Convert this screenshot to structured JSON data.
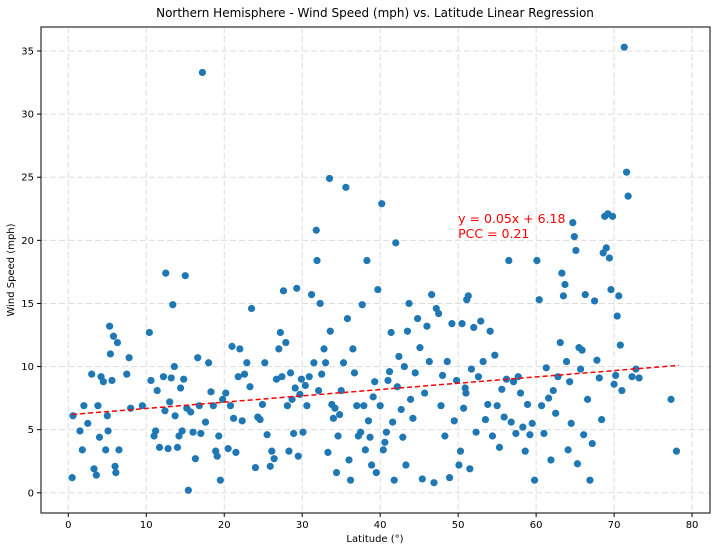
{
  "chart_data": {
    "type": "scatter",
    "title": "Northern Hemisphere - Wind Speed (mph) vs. Latitude Linear Regression",
    "xlabel": "Latitude (°)",
    "ylabel": "Wind Speed (mph)",
    "xlim": [
      -3.5,
      82.3
    ],
    "ylim": [
      -1.6,
      36.9
    ],
    "xticks": [
      0,
      10,
      20,
      30,
      40,
      50,
      60,
      70,
      80
    ],
    "yticks": [
      0,
      5,
      10,
      15,
      20,
      25,
      30,
      35
    ],
    "grid": true,
    "point_color": "#1f77b4",
    "regression": {
      "slope": 0.05,
      "intercept": 6.18,
      "x_range": [
        0.5,
        78.3
      ],
      "color": "#ff0000",
      "style": "dashed"
    },
    "annotations": {
      "equation": "y = 0.05x + 6.18",
      "pcc": "PCC = 0.21",
      "color": "#ff0000",
      "x": 50,
      "y": 20.5
    },
    "points": [
      [
        0.5,
        1.2
      ],
      [
        0.6,
        6.1
      ],
      [
        1.5,
        4.9
      ],
      [
        1.8,
        3.4
      ],
      [
        2.0,
        6.9
      ],
      [
        2.5,
        5.5
      ],
      [
        3.0,
        9.4
      ],
      [
        3.3,
        1.9
      ],
      [
        3.6,
        1.4
      ],
      [
        3.8,
        6.9
      ],
      [
        4.0,
        4.4
      ],
      [
        4.2,
        9.2
      ],
      [
        4.5,
        8.8
      ],
      [
        4.8,
        3.4
      ],
      [
        5.0,
        6.1
      ],
      [
        5.1,
        4.9
      ],
      [
        5.3,
        13.2
      ],
      [
        5.4,
        11.0
      ],
      [
        5.6,
        8.9
      ],
      [
        5.8,
        12.4
      ],
      [
        6.0,
        2.1
      ],
      [
        6.1,
        1.6
      ],
      [
        6.3,
        11.9
      ],
      [
        6.5,
        3.4
      ],
      [
        7.5,
        9.4
      ],
      [
        7.8,
        10.7
      ],
      [
        8.0,
        6.7
      ],
      [
        9.5,
        6.9
      ],
      [
        10.4,
        12.7
      ],
      [
        10.6,
        8.9
      ],
      [
        11.0,
        4.5
      ],
      [
        11.2,
        4.9
      ],
      [
        11.4,
        8.1
      ],
      [
        11.7,
        3.6
      ],
      [
        12.2,
        9.2
      ],
      [
        12.4,
        6.5
      ],
      [
        12.5,
        17.4
      ],
      [
        12.8,
        3.5
      ],
      [
        13.0,
        7.2
      ],
      [
        13.2,
        9.1
      ],
      [
        13.4,
        14.9
      ],
      [
        13.6,
        10.0
      ],
      [
        13.7,
        6.1
      ],
      [
        14.0,
        3.6
      ],
      [
        14.2,
        4.5
      ],
      [
        14.4,
        8.3
      ],
      [
        14.6,
        4.9
      ],
      [
        14.8,
        9.0
      ],
      [
        15.0,
        17.2
      ],
      [
        15.2,
        6.7
      ],
      [
        15.4,
        0.2
      ],
      [
        15.7,
        6.4
      ],
      [
        16.0,
        4.8
      ],
      [
        16.3,
        2.7
      ],
      [
        16.6,
        10.7
      ],
      [
        16.8,
        6.9
      ],
      [
        17.0,
        4.7
      ],
      [
        17.2,
        33.3
      ],
      [
        17.6,
        5.6
      ],
      [
        18.0,
        10.3
      ],
      [
        18.3,
        8.0
      ],
      [
        18.6,
        6.9
      ],
      [
        18.9,
        3.3
      ],
      [
        19.1,
        2.9
      ],
      [
        19.3,
        4.5
      ],
      [
        19.5,
        1.0
      ],
      [
        19.8,
        7.4
      ],
      [
        20.2,
        7.9
      ],
      [
        20.5,
        3.5
      ],
      [
        20.8,
        6.9
      ],
      [
        21.0,
        11.6
      ],
      [
        21.2,
        5.9
      ],
      [
        21.5,
        3.2
      ],
      [
        21.8,
        9.2
      ],
      [
        22.0,
        11.4
      ],
      [
        22.3,
        5.7
      ],
      [
        22.6,
        9.4
      ],
      [
        22.9,
        10.3
      ],
      [
        23.3,
        8.4
      ],
      [
        23.5,
        14.6
      ],
      [
        24.0,
        2.0
      ],
      [
        24.3,
        6.0
      ],
      [
        24.6,
        5.8
      ],
      [
        24.9,
        7.0
      ],
      [
        25.2,
        10.3
      ],
      [
        25.5,
        4.6
      ],
      [
        25.9,
        2.1
      ],
      [
        26.1,
        3.3
      ],
      [
        26.4,
        2.7
      ],
      [
        26.7,
        9.0
      ],
      [
        27.0,
        11.4
      ],
      [
        27.2,
        12.7
      ],
      [
        27.4,
        9.2
      ],
      [
        27.6,
        16.0
      ],
      [
        27.9,
        11.9
      ],
      [
        28.1,
        6.9
      ],
      [
        28.3,
        3.3
      ],
      [
        28.5,
        9.5
      ],
      [
        28.7,
        7.4
      ],
      [
        28.9,
        4.7
      ],
      [
        29.1,
        8.3
      ],
      [
        29.3,
        16.2
      ],
      [
        29.5,
        2.9
      ],
      [
        29.7,
        7.8
      ],
      [
        29.9,
        9.0
      ],
      [
        30.1,
        4.8
      ],
      [
        30.4,
        8.5
      ],
      [
        30.6,
        6.9
      ],
      [
        30.9,
        9.2
      ],
      [
        31.2,
        15.7
      ],
      [
        31.5,
        10.3
      ],
      [
        31.8,
        20.8
      ],
      [
        31.9,
        18.4
      ],
      [
        32.1,
        8.1
      ],
      [
        32.3,
        15.0
      ],
      [
        32.5,
        9.4
      ],
      [
        32.8,
        11.4
      ],
      [
        33.0,
        10.3
      ],
      [
        33.3,
        3.2
      ],
      [
        33.5,
        24.9
      ],
      [
        33.6,
        12.8
      ],
      [
        33.8,
        7.0
      ],
      [
        34.0,
        5.9
      ],
      [
        34.2,
        6.7
      ],
      [
        34.4,
        1.6
      ],
      [
        34.6,
        4.5
      ],
      [
        34.8,
        6.2
      ],
      [
        35.0,
        8.1
      ],
      [
        35.3,
        10.3
      ],
      [
        35.6,
        24.2
      ],
      [
        35.8,
        13.8
      ],
      [
        36.0,
        2.6
      ],
      [
        36.2,
        1.0
      ],
      [
        36.5,
        11.4
      ],
      [
        36.7,
        9.5
      ],
      [
        37.0,
        6.9
      ],
      [
        37.2,
        4.5
      ],
      [
        37.5,
        4.8
      ],
      [
        37.7,
        14.9
      ],
      [
        37.9,
        6.9
      ],
      [
        38.1,
        3.4
      ],
      [
        38.3,
        18.4
      ],
      [
        38.5,
        5.7
      ],
      [
        38.7,
        4.4
      ],
      [
        38.9,
        2.2
      ],
      [
        39.1,
        7.6
      ],
      [
        39.3,
        8.8
      ],
      [
        39.5,
        1.6
      ],
      [
        39.7,
        16.1
      ],
      [
        40.0,
        6.9
      ],
      [
        40.2,
        22.9
      ],
      [
        40.4,
        3.4
      ],
      [
        40.6,
        4.0
      ],
      [
        40.8,
        4.8
      ],
      [
        41.0,
        8.9
      ],
      [
        41.2,
        9.6
      ],
      [
        41.4,
        12.7
      ],
      [
        41.6,
        5.6
      ],
      [
        41.8,
        1.0
      ],
      [
        42.0,
        19.8
      ],
      [
        42.2,
        8.4
      ],
      [
        42.4,
        10.8
      ],
      [
        42.7,
        6.6
      ],
      [
        42.9,
        4.4
      ],
      [
        43.1,
        10.0
      ],
      [
        43.3,
        2.2
      ],
      [
        43.5,
        12.8
      ],
      [
        43.7,
        15.0
      ],
      [
        43.9,
        7.4
      ],
      [
        44.2,
        5.9
      ],
      [
        44.5,
        9.5
      ],
      [
        44.8,
        13.8
      ],
      [
        45.1,
        11.5
      ],
      [
        45.4,
        1.1
      ],
      [
        45.7,
        7.9
      ],
      [
        46.0,
        13.2
      ],
      [
        46.3,
        10.4
      ],
      [
        46.6,
        15.7
      ],
      [
        46.9,
        0.8
      ],
      [
        47.2,
        14.6
      ],
      [
        47.5,
        14.2
      ],
      [
        47.8,
        6.9
      ],
      [
        48.0,
        9.3
      ],
      [
        48.3,
        4.5
      ],
      [
        48.6,
        10.4
      ],
      [
        48.9,
        1.2
      ],
      [
        49.2,
        13.4
      ],
      [
        49.5,
        5.7
      ],
      [
        49.8,
        8.9
      ],
      [
        50.1,
        2.2
      ],
      [
        50.3,
        3.3
      ],
      [
        50.5,
        13.4
      ],
      [
        50.7,
        6.7
      ],
      [
        50.9,
        8.3
      ],
      [
        51.0,
        7.9
      ],
      [
        51.1,
        15.3
      ],
      [
        51.3,
        15.6
      ],
      [
        51.5,
        1.9
      ],
      [
        51.7,
        9.8
      ],
      [
        52.0,
        13.1
      ],
      [
        52.3,
        4.8
      ],
      [
        52.6,
        9.2
      ],
      [
        52.9,
        13.6
      ],
      [
        53.2,
        10.4
      ],
      [
        53.5,
        5.8
      ],
      [
        53.8,
        7.0
      ],
      [
        54.1,
        12.8
      ],
      [
        54.4,
        4.5
      ],
      [
        54.7,
        10.9
      ],
      [
        55.0,
        6.9
      ],
      [
        55.3,
        3.6
      ],
      [
        55.6,
        8.2
      ],
      [
        55.9,
        6.0
      ],
      [
        56.2,
        9.0
      ],
      [
        56.5,
        18.4
      ],
      [
        56.8,
        5.6
      ],
      [
        57.1,
        8.8
      ],
      [
        57.4,
        4.7
      ],
      [
        57.7,
        9.2
      ],
      [
        58.0,
        7.9
      ],
      [
        58.3,
        5.2
      ],
      [
        58.6,
        3.3
      ],
      [
        58.9,
        7.0
      ],
      [
        59.2,
        4.6
      ],
      [
        59.5,
        5.5
      ],
      [
        59.8,
        1.0
      ],
      [
        60.1,
        18.4
      ],
      [
        60.4,
        15.3
      ],
      [
        60.7,
        6.9
      ],
      [
        61.0,
        4.7
      ],
      [
        61.3,
        9.9
      ],
      [
        61.6,
        7.5
      ],
      [
        61.9,
        2.6
      ],
      [
        62.2,
        8.1
      ],
      [
        62.5,
        6.3
      ],
      [
        62.8,
        9.2
      ],
      [
        63.1,
        11.9
      ],
      [
        63.3,
        17.4
      ],
      [
        63.5,
        15.6
      ],
      [
        63.7,
        16.5
      ],
      [
        63.9,
        10.4
      ],
      [
        64.1,
        3.4
      ],
      [
        64.3,
        8.8
      ],
      [
        64.5,
        5.5
      ],
      [
        64.7,
        21.4
      ],
      [
        64.9,
        20.3
      ],
      [
        65.1,
        19.2
      ],
      [
        65.3,
        2.3
      ],
      [
        65.5,
        11.5
      ],
      [
        65.7,
        9.8
      ],
      [
        65.9,
        11.3
      ],
      [
        66.1,
        4.6
      ],
      [
        66.3,
        15.7
      ],
      [
        66.6,
        7.4
      ],
      [
        66.9,
        1.0
      ],
      [
        67.2,
        3.9
      ],
      [
        67.5,
        15.2
      ],
      [
        67.8,
        10.5
      ],
      [
        68.1,
        9.1
      ],
      [
        68.4,
        5.8
      ],
      [
        68.6,
        19.0
      ],
      [
        68.8,
        21.9
      ],
      [
        69.0,
        19.4
      ],
      [
        69.2,
        22.1
      ],
      [
        69.4,
        18.6
      ],
      [
        69.6,
        16.1
      ],
      [
        69.8,
        21.9
      ],
      [
        70.0,
        8.6
      ],
      [
        70.2,
        9.3
      ],
      [
        70.4,
        14.0
      ],
      [
        70.6,
        15.6
      ],
      [
        70.8,
        11.7
      ],
      [
        71.0,
        8.1
      ],
      [
        71.3,
        35.3
      ],
      [
        71.6,
        25.4
      ],
      [
        71.8,
        23.5
      ],
      [
        72.3,
        9.2
      ],
      [
        72.8,
        9.8
      ],
      [
        73.2,
        9.1
      ],
      [
        77.3,
        7.4
      ],
      [
        78.0,
        3.3
      ]
    ]
  }
}
